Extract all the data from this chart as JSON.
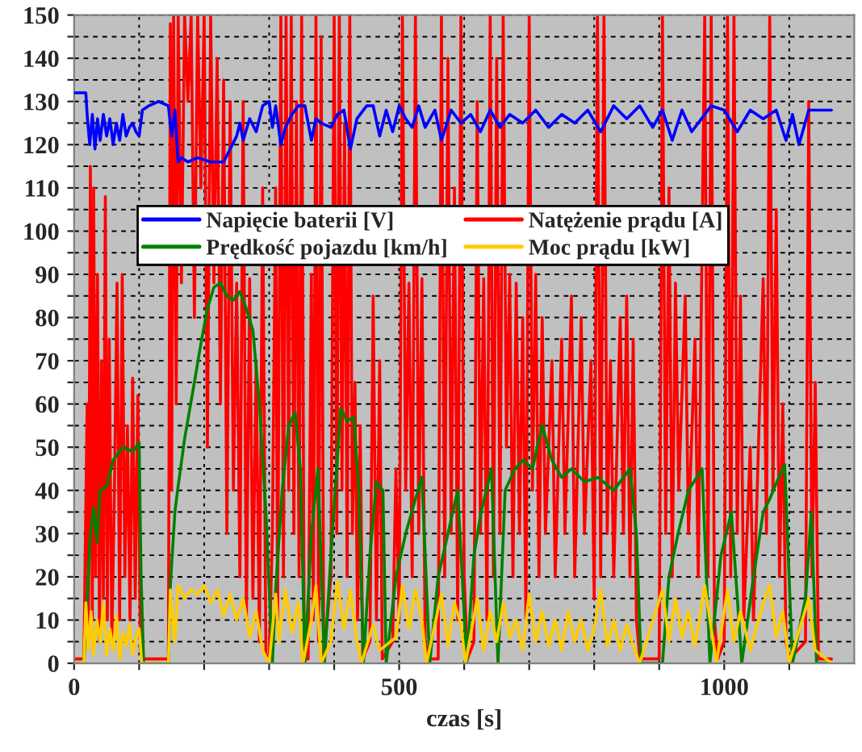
{
  "chart_data": {
    "type": "line",
    "xlabel": "czas [s]",
    "xlim": [
      0,
      1200
    ],
    "ylim": [
      0,
      150
    ],
    "xticks": [
      0,
      {
        "value": 100,
        "label": null
      },
      {
        "value": 200,
        "label": null
      },
      {
        "value": 300,
        "label": null
      },
      {
        "value": 400,
        "label": null
      },
      500,
      {
        "value": 600,
        "label": null
      },
      {
        "value": 700,
        "label": null
      },
      {
        "value": 800,
        "label": null
      },
      {
        "value": 900,
        "label": null
      },
      1000,
      {
        "value": 1100,
        "label": null
      }
    ],
    "yticks": [
      0,
      {
        "value": 5,
        "label": null
      },
      10,
      {
        "value": 15,
        "label": null
      },
      20,
      {
        "value": 25,
        "label": null
      },
      30,
      {
        "value": 35,
        "label": null
      },
      40,
      {
        "value": 45,
        "label": null
      },
      50,
      {
        "value": 55,
        "label": null
      },
      60,
      {
        "value": 65,
        "label": null
      },
      70,
      {
        "value": 75,
        "label": null
      },
      80,
      {
        "value": 85,
        "label": null
      },
      90,
      {
        "value": 95,
        "label": null
      },
      100,
      {
        "value": 105,
        "label": null
      },
      110,
      {
        "value": 115,
        "label": null
      },
      120,
      {
        "value": 125,
        "label": null
      },
      130,
      {
        "value": 135,
        "label": null
      },
      140,
      {
        "value": 145,
        "label": null
      },
      150
    ],
    "grid": true,
    "legend": "top",
    "marker": "none",
    "line_style": "solid",
    "series": [
      {
        "name": "Napięcie baterii [V]",
        "color": "#0000ff",
        "x": [
          0,
          18,
          20,
          24,
          28,
          32,
          36,
          40,
          45,
          50,
          55,
          60,
          65,
          70,
          75,
          80,
          85,
          90,
          95,
          100,
          105,
          115,
          130,
          145,
          150,
          155,
          160,
          165,
          175,
          190,
          210,
          230,
          250,
          255,
          260,
          270,
          280,
          290,
          300,
          305,
          310,
          318,
          325,
          335,
          345,
          355,
          365,
          372,
          380,
          395,
          405,
          415,
          425,
          435,
          450,
          460,
          470,
          480,
          490,
          500,
          510,
          520,
          530,
          540,
          555,
          565,
          580,
          595,
          610,
          625,
          640,
          655,
          670,
          690,
          710,
          730,
          750,
          770,
          790,
          810,
          830,
          850,
          870,
          890,
          905,
          920,
          935,
          950,
          965,
          980,
          1000,
          1020,
          1040,
          1060,
          1080,
          1095,
          1105,
          1115,
          1130,
          1150,
          1165
        ],
        "values": [
          132,
          132,
          127,
          120,
          127,
          119,
          126,
          121,
          127,
          122,
          126,
          120,
          125,
          121,
          127,
          122,
          124,
          125,
          123,
          122,
          128,
          129,
          130,
          129,
          122,
          128,
          116,
          117,
          116,
          117,
          116,
          116,
          122,
          125,
          121,
          126,
          123,
          129,
          130,
          124,
          129,
          120,
          124,
          127,
          129,
          129,
          121,
          126,
          125,
          124,
          127,
          128,
          119,
          126,
          129,
          129,
          122,
          128,
          123,
          129,
          126,
          124,
          129,
          124,
          128,
          121,
          128,
          125,
          127,
          123,
          128,
          124,
          127,
          125,
          128,
          124,
          127,
          125,
          128,
          123,
          129,
          126,
          129,
          124,
          128,
          121,
          128,
          123,
          126,
          129,
          128,
          123,
          128,
          126,
          128,
          121,
          127,
          120,
          128,
          128,
          128
        ]
      },
      {
        "name": "Natężenie prądu [A]",
        "color": "#ff0000",
        "x": [
          0,
          15,
          20,
          22,
          25,
          28,
          30,
          33,
          36,
          39,
          42,
          45,
          48,
          51,
          54,
          58,
          62,
          66,
          70,
          74,
          78,
          82,
          86,
          90,
          94,
          98,
          102,
          106,
          145,
          148,
          150,
          153,
          157,
          160,
          165,
          170,
          175,
          180,
          185,
          190,
          195,
          200,
          205,
          210,
          215,
          220,
          225,
          230,
          235,
          240,
          245,
          250,
          255,
          260,
          265,
          270,
          275,
          280,
          285,
          290,
          295,
          300,
          305,
          310,
          313,
          318,
          322,
          326,
          330,
          334,
          338,
          342,
          346,
          350,
          354,
          360,
          365,
          368,
          372,
          376,
          380,
          384,
          395,
          400,
          404,
          408,
          412,
          416,
          420,
          424,
          428,
          432,
          436,
          440,
          444,
          455,
          460,
          465,
          470,
          474,
          490,
          495,
          500,
          505,
          510,
          515,
          520,
          525,
          530,
          535,
          540,
          545,
          560,
          565,
          570,
          575,
          580,
          585,
          590,
          595,
          600,
          605,
          615,
          620,
          625,
          630,
          635,
          640,
          645,
          650,
          655,
          660,
          665,
          670,
          675,
          680,
          685,
          690,
          695,
          700,
          705,
          710,
          715,
          720,
          725,
          735,
          740,
          750,
          755,
          765,
          770,
          780,
          785,
          795,
          800,
          805,
          810,
          815,
          820,
          825,
          830,
          840,
          845,
          850,
          855,
          860,
          865,
          870,
          900,
          905,
          910,
          915,
          920,
          925,
          930,
          940,
          945,
          955,
          960,
          970,
          975,
          980,
          985,
          990,
          1000,
          1005,
          1010,
          1015,
          1020,
          1025,
          1030,
          1040,
          1045,
          1060,
          1065,
          1070,
          1075,
          1080,
          1085,
          1090,
          1095,
          1100,
          1125,
          1130,
          1135,
          1140,
          1145,
          1165
        ],
        "values": [
          1,
          1,
          60,
          5,
          115,
          10,
          110,
          20,
          90,
          5,
          70,
          15,
          108,
          10,
          75,
          5,
          40,
          88,
          10,
          90,
          20,
          55,
          10,
          66,
          15,
          62,
          3,
          1,
          1,
          148,
          40,
          150,
          60,
          150,
          88,
          150,
          130,
          150,
          80,
          150,
          110,
          150,
          50,
          150,
          88,
          140,
          60,
          135,
          30,
          130,
          40,
          88,
          20,
          130,
          10,
          89,
          15,
          70,
          5,
          110,
          2,
          1,
          30,
          110,
          10,
          150,
          20,
          150,
          40,
          150,
          30,
          130,
          20,
          150,
          1,
          1,
          90,
          10,
          150,
          5,
          145,
          1,
          20,
          150,
          30,
          150,
          40,
          125,
          20,
          150,
          30,
          65,
          10,
          55,
          1,
          5,
          85,
          10,
          70,
          1,
          5,
          45,
          10,
          150,
          40,
          88,
          20,
          150,
          30,
          89,
          5,
          1,
          1,
          150,
          20,
          140,
          30,
          110,
          10,
          150,
          20,
          1,
          5,
          130,
          30,
          89,
          10,
          150,
          20,
          140,
          30,
          150,
          50,
          90,
          20,
          88,
          30,
          80,
          10,
          150,
          40,
          90,
          20,
          80,
          30,
          70,
          20,
          75,
          30,
          85,
          20,
          80,
          30,
          70,
          15,
          150,
          20,
          150,
          30,
          70,
          20,
          80,
          30,
          85,
          20,
          75,
          10,
          1,
          1,
          150,
          30,
          110,
          20,
          88,
          40,
          85,
          30,
          75,
          20,
          150,
          20,
          150,
          10,
          1,
          5,
          150,
          20,
          150,
          30,
          85,
          10,
          50,
          10,
          89,
          30,
          150,
          40,
          105,
          20,
          60,
          5,
          1,
          5,
          130,
          20,
          65,
          1,
          1
        ]
      },
      {
        "name": "Prędkość pojazdu [km/h]",
        "color": "#008000",
        "x": [
          0,
          15,
          20,
          25,
          30,
          35,
          40,
          50,
          60,
          75,
          90,
          100,
          103,
          107,
          145,
          148,
          155,
          160,
          170,
          185,
          195,
          205,
          215,
          225,
          235,
          245,
          255,
          265,
          275,
          285,
          295,
          305,
          310,
          320,
          330,
          340,
          348,
          355,
          365,
          375,
          385,
          395,
          410,
          420,
          430,
          438,
          445,
          455,
          465,
          475,
          480,
          495,
          510,
          525,
          535,
          540,
          547,
          560,
          575,
          590,
          604,
          615,
          626,
          642,
          652,
          663,
          678,
          691,
          705,
          720,
          735,
          750,
          765,
          785,
          806,
          830,
          855,
          865,
          872,
          905,
          915,
          929,
          945,
          966,
          978,
          995,
          1011,
          1027,
          1045,
          1060,
          1070,
          1081,
          1093,
          1105,
          1125,
          1134,
          1142,
          1165
        ],
        "values": [
          0,
          0,
          15,
          30,
          36,
          28,
          40,
          41,
          47,
          50,
          49,
          51,
          20,
          0,
          0,
          18,
          35,
          41,
          52,
          65,
          74,
          82,
          87,
          88,
          85,
          84,
          86,
          82,
          77,
          60,
          35,
          0,
          17,
          40,
          55,
          58,
          45,
          0,
          30,
          45,
          0,
          25,
          59,
          56,
          57,
          40,
          0,
          25,
          42,
          40,
          0,
          20,
          30,
          38,
          43,
          25,
          0,
          20,
          30,
          40,
          0,
          25,
          35,
          45,
          0,
          40,
          45,
          47,
          45,
          55,
          47,
          43,
          45,
          42,
          43,
          40,
          45,
          30,
          0,
          0,
          20,
          30,
          40,
          45,
          0,
          25,
          35,
          0,
          20,
          35,
          38,
          42,
          46,
          0,
          15,
          35,
          0,
          0
        ]
      },
      {
        "name": "Moc prądu [kW]",
        "color": "#ffcc00",
        "x": [
          0,
          15,
          18,
          22,
          26,
          30,
          35,
          40,
          45,
          50,
          55,
          60,
          65,
          70,
          75,
          80,
          85,
          90,
          95,
          100,
          104,
          145,
          148,
          155,
          160,
          170,
          180,
          190,
          200,
          210,
          220,
          230,
          240,
          250,
          260,
          270,
          280,
          290,
          300,
          310,
          315,
          325,
          335,
          345,
          352,
          365,
          372,
          380,
          395,
          405,
          415,
          425,
          435,
          442,
          460,
          470,
          495,
          505,
          515,
          525,
          535,
          542,
          565,
          575,
          585,
          595,
          602,
          620,
          630,
          640,
          650,
          660,
          670,
          680,
          690,
          700,
          710,
          720,
          730,
          740,
          750,
          760,
          770,
          780,
          790,
          800,
          810,
          820,
          830,
          840,
          850,
          860,
          870,
          905,
          915,
          925,
          935,
          945,
          955,
          970,
          980,
          988,
          1005,
          1015,
          1025,
          1040,
          1060,
          1070,
          1080,
          1090,
          1100,
          1130,
          1140,
          1165
        ],
        "values": [
          0,
          0,
          14,
          3,
          12,
          2,
          10,
          5,
          14,
          2,
          8,
          3,
          11,
          1,
          7,
          4,
          9,
          2,
          6,
          8,
          0,
          0,
          17,
          5,
          18,
          15,
          17,
          16,
          18,
          14,
          17,
          11,
          16,
          10,
          15,
          6,
          12,
          3,
          0,
          16,
          5,
          17,
          7,
          14,
          0,
          10,
          18,
          0,
          5,
          19,
          8,
          17,
          5,
          0,
          9,
          3,
          6,
          18,
          8,
          17,
          10,
          0,
          16,
          4,
          14,
          9,
          0,
          15,
          3,
          12,
          5,
          14,
          6,
          10,
          3,
          16,
          5,
          12,
          4,
          10,
          3,
          12,
          5,
          10,
          3,
          8,
          17,
          4,
          10,
          3,
          9,
          4,
          0,
          17,
          5,
          15,
          6,
          12,
          4,
          18,
          8,
          0,
          17,
          5,
          12,
          3,
          14,
          18,
          6,
          12,
          0,
          15,
          3,
          0
        ]
      }
    ]
  }
}
